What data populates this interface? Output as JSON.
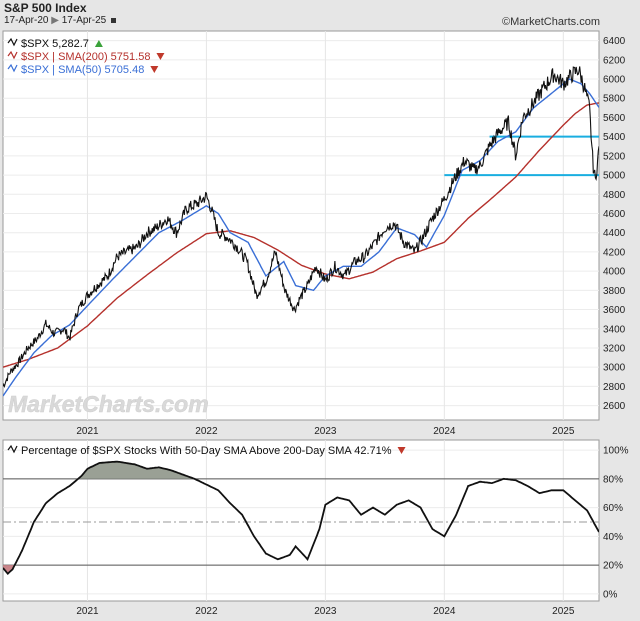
{
  "header": {
    "title": "S&P 500 Index",
    "date_start": "17-Apr-20",
    "date_end": "17-Apr-25",
    "brand": "©MarketCharts.com",
    "watermark": "MarketCharts.com"
  },
  "colors": {
    "price": "#111111",
    "sma200": "#b5312c",
    "sma50": "#3a6fd6",
    "support": "#19aee0",
    "breadth": "#111111",
    "fill_high": "#9aa095",
    "fill_low": "#c9858a",
    "up": "#3aa23a",
    "down": "#c0392b"
  },
  "chart_data": [
    {
      "type": "line",
      "title": "S&P 500 Index",
      "xlabel": "",
      "ylabel": "",
      "x_ticks": [
        "2021",
        "2022",
        "2023",
        "2024",
        "2025"
      ],
      "x_tick_pos": [
        2021,
        2022,
        2023,
        2024,
        2025
      ],
      "xlim": [
        2020.29,
        2025.3
      ],
      "y_ticks": [
        2600,
        2800,
        3000,
        3200,
        3400,
        3600,
        3800,
        4000,
        4200,
        4400,
        4600,
        4800,
        5000,
        5200,
        5400,
        5600,
        5800,
        6000,
        6200,
        6400
      ],
      "ylim": [
        2450,
        6500
      ],
      "legend": [
        {
          "label": "$SPX 5,282.7",
          "arrow": "up"
        },
        {
          "label": "$SPX | SMA(200) 5751.58",
          "arrow": "down"
        },
        {
          "label": "$SPX | SMA(50) 5705.48",
          "arrow": "down"
        }
      ],
      "series": [
        {
          "name": "$SPX",
          "x": [
            2020.29,
            2020.35,
            2020.42,
            2020.5,
            2020.58,
            2020.65,
            2020.72,
            2020.8,
            2020.85,
            2020.92,
            2021.0,
            2021.08,
            2021.17,
            2021.25,
            2021.33,
            2021.42,
            2021.5,
            2021.58,
            2021.67,
            2021.75,
            2021.83,
            2021.92,
            2022.0,
            2022.04,
            2022.1,
            2022.18,
            2022.26,
            2022.34,
            2022.42,
            2022.5,
            2022.58,
            2022.66,
            2022.74,
            2022.78,
            2022.85,
            2022.92,
            2023.0,
            2023.08,
            2023.16,
            2023.25,
            2023.33,
            2023.42,
            2023.5,
            2023.58,
            2023.66,
            2023.75,
            2023.82,
            2023.9,
            2024.0,
            2024.08,
            2024.17,
            2024.25,
            2024.3,
            2024.38,
            2024.46,
            2024.54,
            2024.6,
            2024.66,
            2024.75,
            2024.83,
            2024.92,
            2025.0,
            2025.08,
            2025.13,
            2025.18,
            2025.22,
            2025.25,
            2025.27,
            2025.3
          ],
          "values": [
            2800,
            2950,
            3050,
            3200,
            3300,
            3450,
            3350,
            3400,
            3300,
            3600,
            3750,
            3850,
            3950,
            4150,
            4200,
            4250,
            4400,
            4450,
            4550,
            4400,
            4650,
            4700,
            4780,
            4650,
            4400,
            4350,
            4250,
            4100,
            3750,
            3900,
            4200,
            3800,
            3600,
            3700,
            3850,
            4050,
            3900,
            4050,
            3950,
            4100,
            4150,
            4300,
            4450,
            4500,
            4300,
            4200,
            4350,
            4550,
            4750,
            4950,
            5150,
            5050,
            5100,
            5300,
            5450,
            5550,
            5200,
            5600,
            5750,
            5900,
            6050,
            5950,
            6050,
            6100,
            5900,
            5700,
            5100,
            4950,
            5280
          ]
        },
        {
          "name": "SMA(200)",
          "x": [
            2020.29,
            2020.5,
            2020.75,
            2021.0,
            2021.25,
            2021.5,
            2021.75,
            2022.0,
            2022.2,
            2022.4,
            2022.6,
            2022.8,
            2023.0,
            2023.2,
            2023.4,
            2023.6,
            2023.8,
            2024.0,
            2024.2,
            2024.4,
            2024.6,
            2024.8,
            2025.0,
            2025.1,
            2025.2,
            2025.3
          ],
          "values": [
            3000,
            3080,
            3200,
            3430,
            3720,
            3960,
            4190,
            4390,
            4420,
            4350,
            4220,
            4060,
            3970,
            3920,
            3990,
            4130,
            4210,
            4300,
            4550,
            4760,
            4980,
            5260,
            5520,
            5640,
            5730,
            5751
          ]
        },
        {
          "name": "SMA(50)",
          "x": [
            2020.29,
            2020.4,
            2020.55,
            2020.7,
            2020.85,
            2021.0,
            2021.2,
            2021.4,
            2021.6,
            2021.8,
            2022.0,
            2022.1,
            2022.2,
            2022.35,
            2022.5,
            2022.65,
            2022.75,
            2022.9,
            2023.0,
            2023.15,
            2023.3,
            2023.45,
            2023.6,
            2023.75,
            2023.85,
            2024.0,
            2024.15,
            2024.3,
            2024.45,
            2024.6,
            2024.75,
            2024.9,
            2025.0,
            2025.05,
            2025.15,
            2025.22,
            2025.3
          ],
          "values": [
            2700,
            2900,
            3150,
            3330,
            3440,
            3640,
            3900,
            4150,
            4400,
            4530,
            4680,
            4600,
            4400,
            4300,
            3950,
            4100,
            3850,
            3800,
            3950,
            4050,
            4050,
            4200,
            4450,
            4380,
            4250,
            4580,
            5050,
            5150,
            5350,
            5450,
            5700,
            5850,
            5950,
            6000,
            5950,
            5850,
            5705
          ]
        }
      ],
      "hlines": [
        {
          "value": 5400,
          "from": 2024.38
        },
        {
          "value": 5000,
          "from": 2024.0
        }
      ]
    },
    {
      "type": "line",
      "title": "Percentage of $SPX Stocks With 50-Day SMA Above 200-Day SMA 42.71%",
      "legend_arrow": "down",
      "xlabel": "",
      "ylabel": "",
      "x_ticks": [
        "2021",
        "2022",
        "2023",
        "2024",
        "2025"
      ],
      "x_tick_pos": [
        2021,
        2022,
        2023,
        2024,
        2025
      ],
      "xlim": [
        2020.29,
        2025.3
      ],
      "y_ticks": [
        "0%",
        "20%",
        "40%",
        "60%",
        "80%",
        "100%"
      ],
      "y_tick_vals": [
        0,
        20,
        40,
        60,
        80,
        100
      ],
      "ylim": [
        -5,
        107
      ],
      "ref_lines": [
        80,
        50,
        20
      ],
      "series": [
        {
          "name": "Percentage",
          "x": [
            2020.29,
            2020.33,
            2020.37,
            2020.45,
            2020.55,
            2020.65,
            2020.75,
            2020.85,
            2020.95,
            2021.0,
            2021.1,
            2021.25,
            2021.4,
            2021.5,
            2021.6,
            2021.7,
            2021.8,
            2021.9,
            2022.0,
            2022.1,
            2022.2,
            2022.3,
            2022.4,
            2022.5,
            2022.6,
            2022.7,
            2022.75,
            2022.85,
            2022.95,
            2023.0,
            2023.1,
            2023.2,
            2023.3,
            2023.4,
            2023.5,
            2023.6,
            2023.7,
            2023.8,
            2023.9,
            2024.0,
            2024.1,
            2024.2,
            2024.3,
            2024.4,
            2024.5,
            2024.6,
            2024.7,
            2024.8,
            2024.9,
            2025.0,
            2025.1,
            2025.2,
            2025.3
          ],
          "values": [
            18,
            14,
            17,
            30,
            50,
            63,
            70,
            75,
            82,
            87,
            91,
            92,
            90,
            87,
            88,
            86,
            83,
            80,
            76,
            72,
            63,
            55,
            40,
            28,
            24,
            27,
            33,
            24,
            45,
            62,
            67,
            65,
            55,
            60,
            55,
            62,
            65,
            60,
            45,
            40,
            55,
            75,
            78,
            77,
            80,
            79,
            75,
            70,
            72,
            72,
            65,
            58,
            43
          ]
        }
      ]
    }
  ]
}
